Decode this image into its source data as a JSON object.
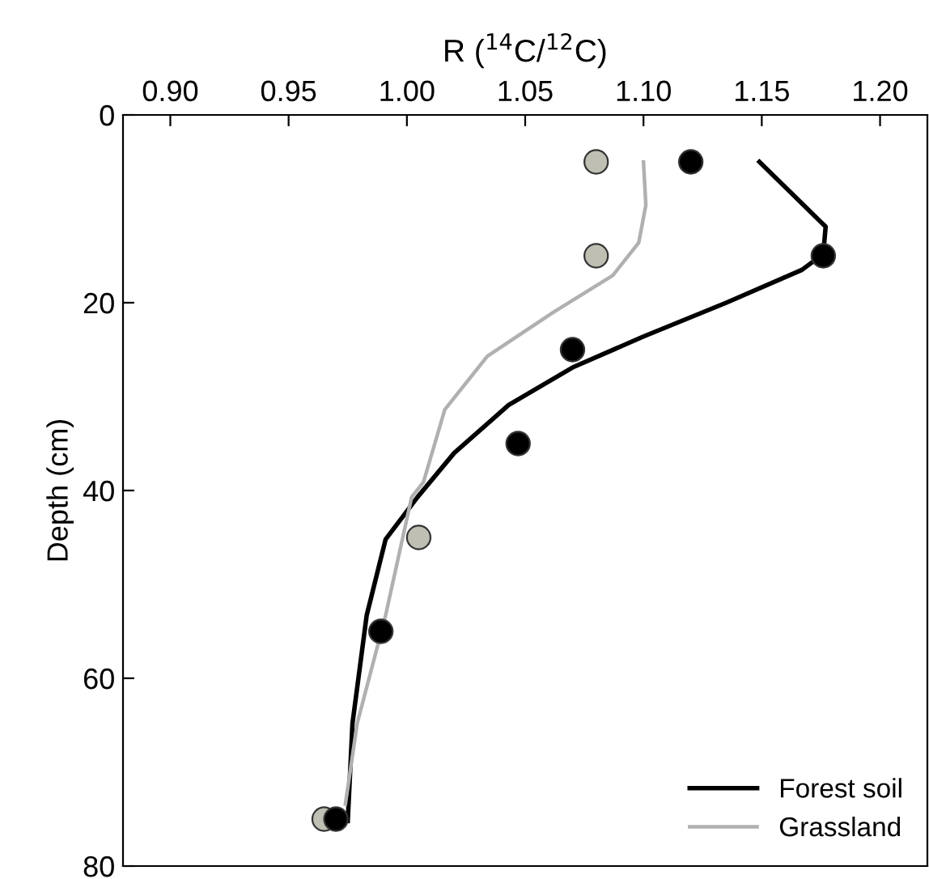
{
  "chart_data": {
    "type": "line",
    "xlabel": "R ($^{14}$C/$^{12}$C)",
    "ylabel": "Depth (cm)",
    "xlim": [
      0.88,
      1.22
    ],
    "xticks": [
      {
        "value": 0.9,
        "label": "0.90"
      },
      {
        "value": 0.95,
        "label": "0.95"
      },
      {
        "value": 1.0,
        "label": "1.00"
      },
      {
        "value": 1.05,
        "label": "1.05"
      },
      {
        "value": 1.1,
        "label": "1.10"
      },
      {
        "value": 1.15,
        "label": "1.15"
      },
      {
        "value": 1.2,
        "label": "1.20"
      }
    ],
    "ylim": [
      80,
      0
    ],
    "yticks": [
      0,
      20,
      40,
      60,
      80
    ],
    "grid": false,
    "legend": "bottom right",
    "series": [
      {
        "name": "Forest soil",
        "color": "#000000",
        "marker": "none",
        "x": [
          1.149,
          1.177,
          1.176,
          1.167,
          1.135,
          1.1,
          1.07,
          1.043,
          1.02,
          1.0045,
          0.991,
          0.983,
          0.977,
          0.975
        ],
        "values": [
          5,
          11.9,
          14.8,
          16.5,
          20,
          23.6,
          26.9,
          30.9,
          36,
          40.7,
          45.2,
          53.3,
          64.8,
          75.2
        ]
      },
      {
        "name": "Grassland",
        "color": "#b0b0b0",
        "marker": "none",
        "x": [
          1.1,
          1.101,
          1.098,
          1.087,
          1.062,
          1.034,
          1.016,
          1.007,
          1.002,
          0.991,
          0.979,
          0.974
        ],
        "values": [
          5,
          9.6,
          13.6,
          17.1,
          21,
          25.7,
          31.4,
          39.1,
          40.7,
          53.3,
          64.8,
          73.4
        ]
      },
      {
        "type": "scatter",
        "color": "#bfc0b3",
        "marker": "circle",
        "x": [
          1.08,
          1.08,
          1.005,
          0.965
        ],
        "values": [
          5,
          15,
          45,
          75
        ]
      },
      {
        "type": "scatter",
        "color": "#000000",
        "marker": "circle",
        "x": [
          1.12,
          1.176,
          1.07,
          1.047,
          0.989,
          0.97
        ],
        "values": [
          5,
          15,
          25,
          35,
          55,
          75
        ]
      }
    ]
  }
}
